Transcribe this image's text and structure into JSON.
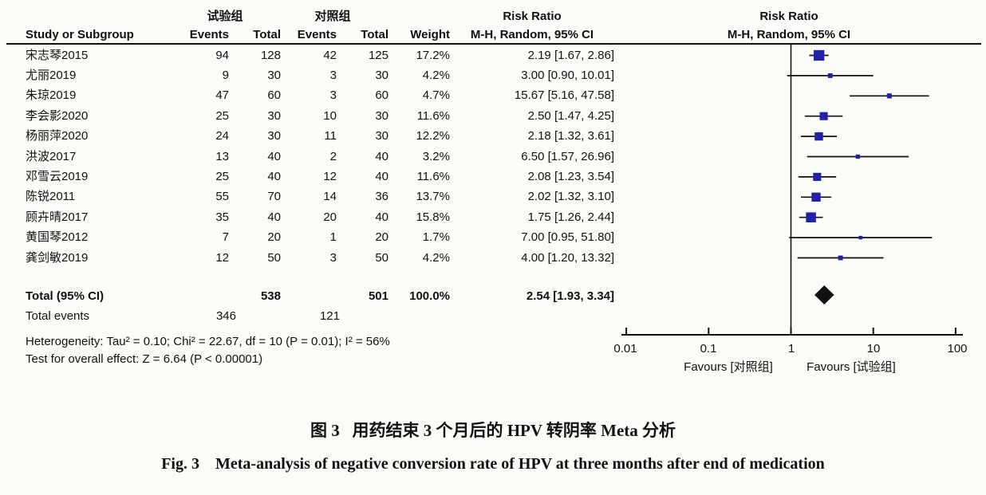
{
  "page": {
    "bg": "#fbfbf8",
    "marker_blue": "#2121aa",
    "line_black": "#111111"
  },
  "header": {
    "group_exp": "试验组",
    "group_ctrl": "对照组",
    "col_study": "Study or Subgroup",
    "col_events": "Events",
    "col_total": "Total",
    "col_weight": "Weight",
    "risk_ratio": "Risk Ratio",
    "method": "M-H, Random, 95% CI"
  },
  "chart_data": {
    "type": "forest_plot",
    "effect_measure": "Risk Ratio",
    "method": "Mantel-Haenszel, Random effects, 95% CI",
    "x_axis": {
      "scale": "log",
      "ticks": [
        0.01,
        0.1,
        1,
        10,
        100
      ],
      "tick_labels": [
        "0.01",
        "0.1",
        "1",
        "10",
        "100"
      ]
    },
    "studies": [
      {
        "name": "宋志琴2015",
        "events_exp": 94,
        "total_exp": 128,
        "events_ctrl": 42,
        "total_ctrl": 125,
        "weight": "17.2%",
        "rr": 2.19,
        "ci_low": 1.67,
        "ci_high": 2.86,
        "ci_text": "2.19 [1.67, 2.86]"
      },
      {
        "name": "尤丽2019",
        "events_exp": 9,
        "total_exp": 30,
        "events_ctrl": 3,
        "total_ctrl": 30,
        "weight": "4.2%",
        "rr": 3.0,
        "ci_low": 0.9,
        "ci_high": 10.01,
        "ci_text": "3.00 [0.90, 10.01]"
      },
      {
        "name": "朱琼2019",
        "events_exp": 47,
        "total_exp": 60,
        "events_ctrl": 3,
        "total_ctrl": 60,
        "weight": "4.7%",
        "rr": 15.67,
        "ci_low": 5.16,
        "ci_high": 47.58,
        "ci_text": "15.67 [5.16, 47.58]"
      },
      {
        "name": "李会影2020",
        "events_exp": 25,
        "total_exp": 30,
        "events_ctrl": 10,
        "total_ctrl": 30,
        "weight": "11.6%",
        "rr": 2.5,
        "ci_low": 1.47,
        "ci_high": 4.25,
        "ci_text": "2.50 [1.47, 4.25]"
      },
      {
        "name": "杨丽萍2020",
        "events_exp": 24,
        "total_exp": 30,
        "events_ctrl": 11,
        "total_ctrl": 30,
        "weight": "12.2%",
        "rr": 2.18,
        "ci_low": 1.32,
        "ci_high": 3.61,
        "ci_text": "2.18 [1.32, 3.61]"
      },
      {
        "name": "洪波2017",
        "events_exp": 13,
        "total_exp": 40,
        "events_ctrl": 2,
        "total_ctrl": 40,
        "weight": "3.2%",
        "rr": 6.5,
        "ci_low": 1.57,
        "ci_high": 26.96,
        "ci_text": "6.50 [1.57, 26.96]"
      },
      {
        "name": "邓雪云2019",
        "events_exp": 25,
        "total_exp": 40,
        "events_ctrl": 12,
        "total_ctrl": 40,
        "weight": "11.6%",
        "rr": 2.08,
        "ci_low": 1.23,
        "ci_high": 3.54,
        "ci_text": "2.08 [1.23, 3.54]"
      },
      {
        "name": "陈锐2011",
        "events_exp": 55,
        "total_exp": 70,
        "events_ctrl": 14,
        "total_ctrl": 36,
        "weight": "13.7%",
        "rr": 2.02,
        "ci_low": 1.32,
        "ci_high": 3.1,
        "ci_text": "2.02 [1.32, 3.10]"
      },
      {
        "name": "顾卉晴2017",
        "events_exp": 35,
        "total_exp": 40,
        "events_ctrl": 20,
        "total_ctrl": 40,
        "weight": "15.8%",
        "rr": 1.75,
        "ci_low": 1.26,
        "ci_high": 2.44,
        "ci_text": "1.75 [1.26, 2.44]"
      },
      {
        "name": "黄国琴2012",
        "events_exp": 7,
        "total_exp": 20,
        "events_ctrl": 1,
        "total_ctrl": 20,
        "weight": "1.7%",
        "rr": 7.0,
        "ci_low": 0.95,
        "ci_high": 51.8,
        "ci_text": "7.00 [0.95, 51.80]"
      },
      {
        "name": "龚剑敏2019",
        "events_exp": 12,
        "total_exp": 50,
        "events_ctrl": 3,
        "total_ctrl": 50,
        "weight": "4.2%",
        "rr": 4.0,
        "ci_low": 1.2,
        "ci_high": 13.32,
        "ci_text": "4.00 [1.20, 13.32]"
      }
    ],
    "total": {
      "label": "Total (95% CI)",
      "total_exp": 538,
      "total_ctrl": 501,
      "weight": "100.0%",
      "rr": 2.54,
      "ci_low": 1.93,
      "ci_high": 3.34,
      "ci_text": "2.54 [1.93, 3.34]"
    },
    "total_events": {
      "label": "Total events",
      "exp": 346,
      "ctrl": 121
    },
    "heterogeneity": "Heterogeneity: Tau² = 0.10; Chi² = 22.67, df = 10 (P = 0.01); I² = 56%",
    "overall_effect": "Test for overall effect: Z = 6.64 (P < 0.00001)",
    "favours_left": "Favours [对照组]",
    "favours_right": "Favours [试验组]"
  },
  "caption": {
    "zh": "图 3   用药结束 3 个月后的 HPV 转阴率 Meta 分析",
    "en": "Fig. 3    Meta-analysis of negative conversion rate of HPV at three months after end of medication"
  }
}
